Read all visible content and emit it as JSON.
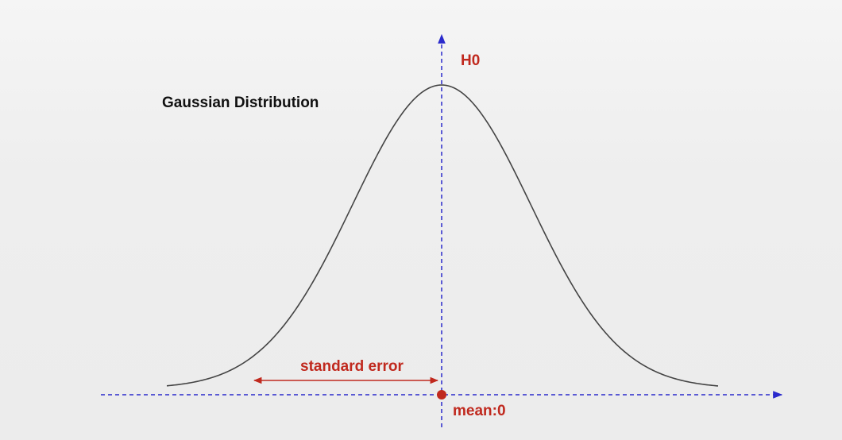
{
  "title": "Gaussian Distribution",
  "hypothesis_label": "H0",
  "interval_label": "standard error",
  "mean_label": "mean:0",
  "colors": {
    "curve": "#444444",
    "axes": "#2a2acc",
    "annotation": "#c0291e",
    "title": "#111111"
  },
  "elements": {
    "curve": "gaussian-curve",
    "vertical_axis": "dashed-vertical-axis-with-arrow",
    "horizontal_axis": "dashed-horizontal-axis-with-arrow",
    "interval_arrow": "double-headed-arrow",
    "mean_point": "filled-dot"
  }
}
